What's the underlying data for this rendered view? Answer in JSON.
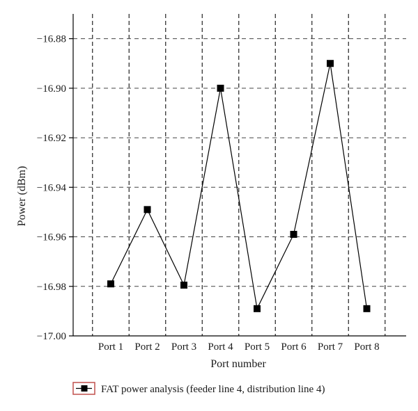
{
  "chart_data": {
    "type": "line",
    "categories": [
      "Port 1",
      "Port 2",
      "Port 3",
      "Port 4",
      "Port 5",
      "Port 6",
      "Port 7",
      "Port 8"
    ],
    "series": [
      {
        "name": "FAT power analysis (feeder line 4, distribution line 4)",
        "values": [
          -16.979,
          -16.949,
          -16.9795,
          -16.9,
          -16.989,
          -16.959,
          -16.89,
          -16.989
        ],
        "marker": "square",
        "color": "#000000"
      }
    ],
    "xlabel": "Port number",
    "ylabel": "Power (dBm)",
    "ylim": [
      -17.0,
      -16.87
    ],
    "yticks": [
      -17.0,
      -16.98,
      -16.96,
      -16.94,
      -16.92,
      -16.9,
      -16.88
    ],
    "ytick_labels": [
      "−17.00",
      "−16.98",
      "−16.96",
      "−16.94",
      "−16.92",
      "−16.90",
      "−16.88"
    ],
    "grid": "vertical dashed + horizontal dashed",
    "legend_position": "bottom-center",
    "legend_frame_color": "#c0504d"
  }
}
